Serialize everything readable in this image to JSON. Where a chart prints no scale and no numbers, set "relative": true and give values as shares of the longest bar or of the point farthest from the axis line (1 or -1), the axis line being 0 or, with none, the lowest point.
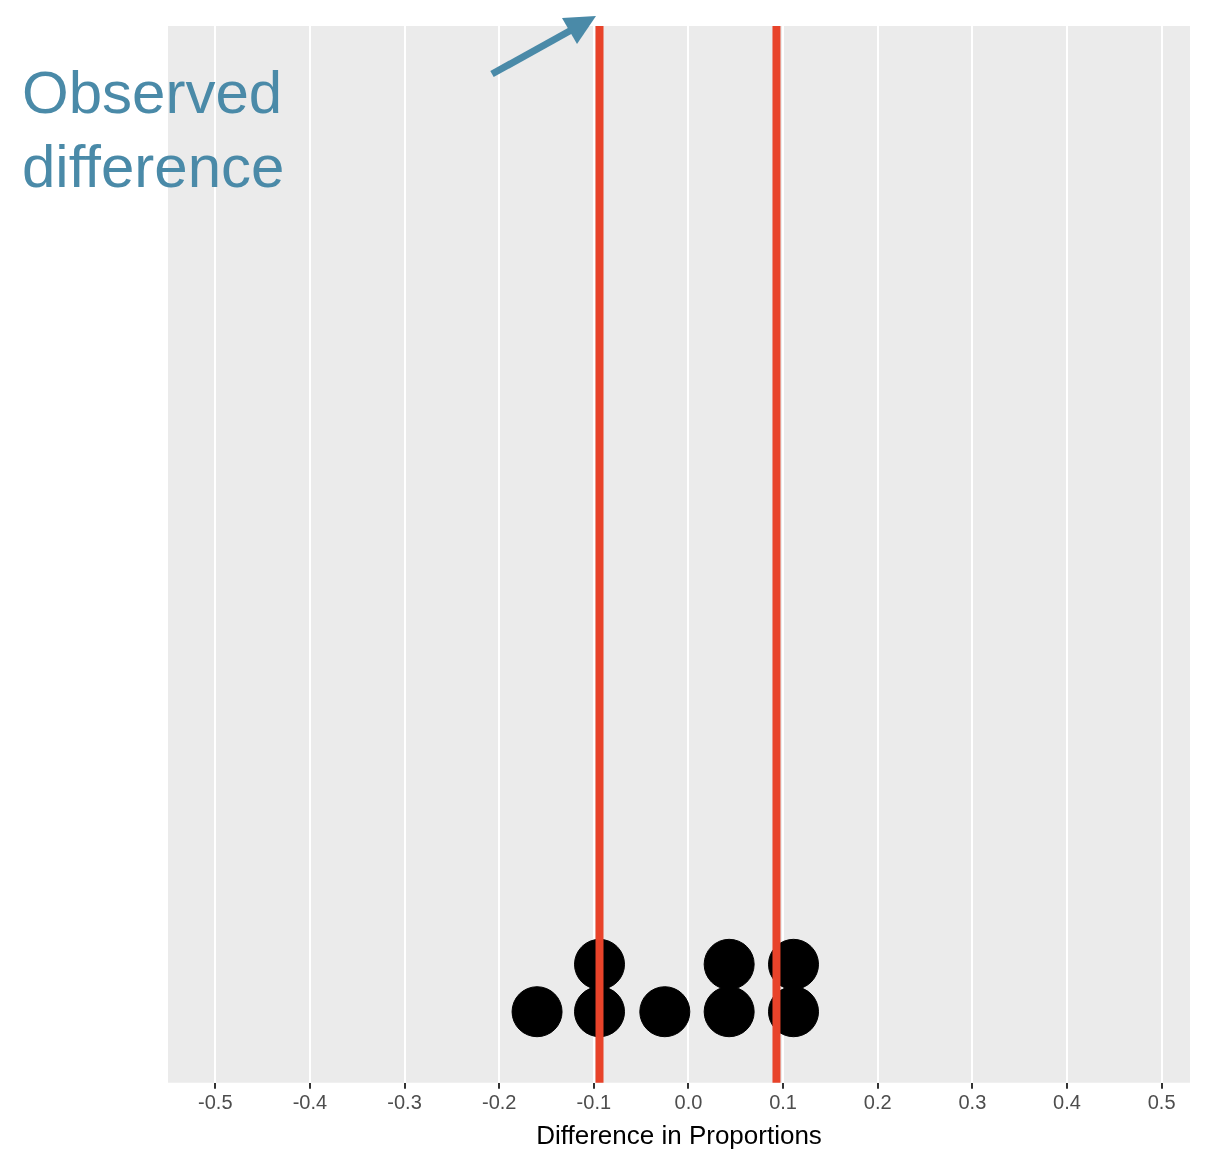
{
  "chart_data": {
    "type": "scatter",
    "xlabel": "Difference in Proportions",
    "relative": true,
    "x": [
      -0.16,
      -0.094,
      -0.094,
      -0.025,
      0.043,
      0.043,
      0.111,
      0.111
    ],
    "values": [
      0.6,
      0.6,
      1,
      0.6,
      0.6,
      1,
      0.6,
      1
    ],
    "annotations": [
      "Observed difference"
    ],
    "color": "#000000",
    "marker": "circle",
    "grid": "x",
    "legend": false,
    "xlim": [
      -0.55,
      0.53
    ],
    "xticks": [
      -0.5,
      -0.4,
      -0.3,
      -0.2,
      -0.1,
      {
        "value": 0,
        "label": "0.0"
      },
      0.1,
      0.2,
      0.3,
      0.4,
      0.5
    ],
    "ref_lines": [
      {
        "axis": "x",
        "value": -0.094,
        "color": "#e8432a"
      },
      {
        "axis": "x",
        "value": 0.093,
        "color": "#e8432a"
      }
    ]
  }
}
